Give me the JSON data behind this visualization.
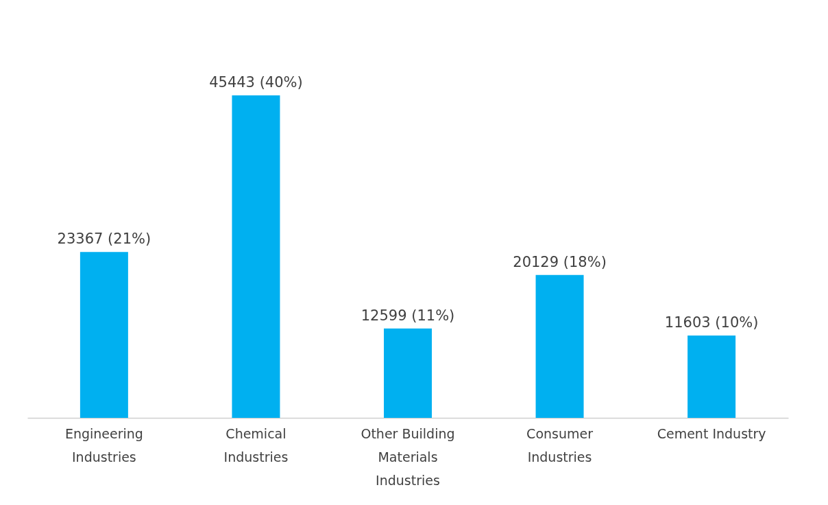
{
  "chart_data": {
    "type": "bar",
    "categories": [
      "Engineering Industries",
      "Chemical Industries",
      "Other Building Materials Industries",
      "Consumer Industries",
      "Cement Industry"
    ],
    "values": [
      23367,
      45443,
      12599,
      20129,
      11603
    ],
    "value_labels": [
      "23367 (21%)",
      "45443 (40%)",
      "12599 (11%)",
      "20129 (18%)",
      "11603 (10%)"
    ],
    "color": "#00b0f0"
  }
}
